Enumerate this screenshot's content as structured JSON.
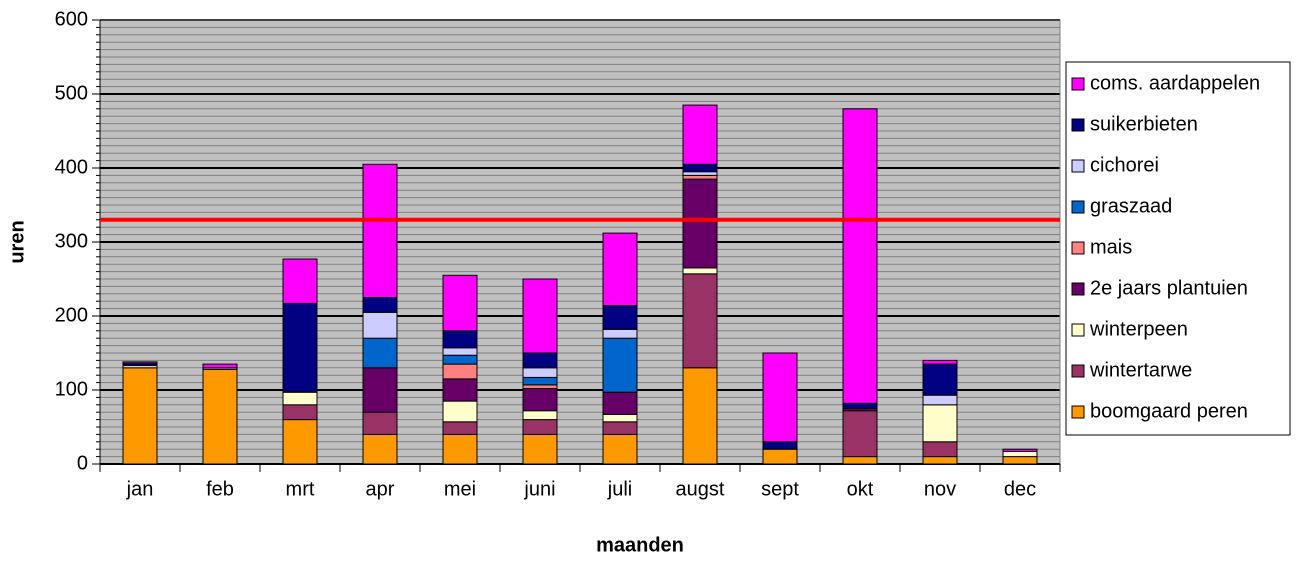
{
  "chart_data": {
    "type": "stacked_bar",
    "xlabel": "maanden",
    "ylabel": "uren",
    "categories": [
      "jan",
      "feb",
      "mrt",
      "apr",
      "mei",
      "juni",
      "juli",
      "augst",
      "sept",
      "okt",
      "nov",
      "dec"
    ],
    "series": [
      {
        "name": "boomgaard peren",
        "color": "#ff9900",
        "values": [
          130,
          128,
          60,
          40,
          40,
          40,
          40,
          130,
          20,
          10,
          10,
          10
        ]
      },
      {
        "name": "wintertarwe",
        "color": "#993366",
        "values": [
          0,
          0,
          20,
          30,
          17,
          20,
          17,
          127,
          0,
          62,
          20,
          0
        ]
      },
      {
        "name": "winterpeen",
        "color": "#ffffcc",
        "values": [
          3,
          2,
          17,
          0,
          28,
          12,
          10,
          8,
          0,
          0,
          50,
          7
        ]
      },
      {
        "name": "2e jaars plantuien",
        "color": "#660066",
        "values": [
          0,
          0,
          0,
          60,
          30,
          30,
          30,
          120,
          0,
          3,
          0,
          0
        ]
      },
      {
        "name": "mais",
        "color": "#ff8080",
        "values": [
          0,
          0,
          0,
          0,
          20,
          5,
          0,
          5,
          0,
          0,
          0,
          0
        ]
      },
      {
        "name": "graszaad",
        "color": "#0066cc",
        "values": [
          0,
          0,
          0,
          40,
          12,
          10,
          73,
          0,
          0,
          0,
          0,
          0
        ]
      },
      {
        "name": "cichorei",
        "color": "#ccccff",
        "values": [
          0,
          0,
          0,
          35,
          10,
          13,
          12,
          5,
          0,
          0,
          13,
          0
        ]
      },
      {
        "name": "suikerbieten",
        "color": "#000080",
        "values": [
          3,
          0,
          120,
          20,
          23,
          20,
          32,
          10,
          10,
          7,
          42,
          0
        ]
      },
      {
        "name": "coms. aardappelen",
        "color": "#ff00ff",
        "values": [
          2,
          5,
          60,
          180,
          75,
          100,
          98,
          80,
          120,
          398,
          5,
          3
        ]
      }
    ],
    "reference_line": {
      "value": 330,
      "color": "#ff0000"
    },
    "ylim": [
      0,
      600
    ],
    "yticks": [
      0,
      100,
      200,
      300,
      400,
      500,
      600
    ],
    "yticks_minor": [
      10,
      20,
      30,
      40,
      50,
      60,
      70,
      80,
      90,
      110,
      120,
      130,
      140,
      150,
      160,
      170,
      180,
      190,
      210,
      220,
      230,
      240,
      250,
      260,
      270,
      280,
      290,
      310,
      320,
      330,
      340,
      350,
      360,
      370,
      380,
      390,
      410,
      420,
      430,
      440,
      450,
      460,
      470,
      480,
      490,
      510,
      520,
      530,
      540,
      550,
      560,
      570,
      580,
      590
    ],
    "grid": true,
    "legend": "right",
    "background": "#c0c0c0"
  }
}
